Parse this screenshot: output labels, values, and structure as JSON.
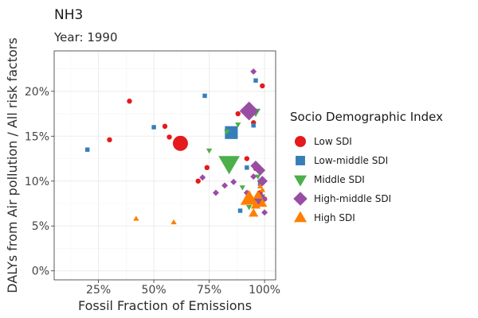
{
  "chart_data": {
    "type": "scatter",
    "title": "NH3",
    "subtitle": "Year: 1990",
    "xlabel": "Fossil Fraction of Emissions",
    "ylabel": "DALYs from Air pollution / All risk factors",
    "xlim": [
      0.05,
      1.05
    ],
    "ylim": [
      -0.01,
      0.245
    ],
    "x_ticks": [
      0.25,
      0.5,
      0.75,
      1.0
    ],
    "x_tick_labels": [
      "25%",
      "50%",
      "75%",
      "100%"
    ],
    "y_ticks": [
      0.0,
      0.05,
      0.1,
      0.15,
      0.2
    ],
    "y_tick_labels": [
      "0%",
      "5%",
      "10%",
      "15%",
      "20%"
    ],
    "grid": true,
    "legend": {
      "title": "Socio Demographic Index",
      "placement": "right"
    },
    "series": [
      {
        "name": "Low SDI",
        "shape": "circle",
        "color": "#E41A1C",
        "points": [
          {
            "x": 0.3,
            "y": 0.146,
            "size": 1
          },
          {
            "x": 0.39,
            "y": 0.189,
            "size": 1
          },
          {
            "x": 0.55,
            "y": 0.161,
            "size": 1
          },
          {
            "x": 0.57,
            "y": 0.149,
            "size": 1
          },
          {
            "x": 0.62,
            "y": 0.142,
            "size": 4
          },
          {
            "x": 0.7,
            "y": 0.1,
            "size": 1
          },
          {
            "x": 0.74,
            "y": 0.115,
            "size": 1
          },
          {
            "x": 0.88,
            "y": 0.175,
            "size": 1
          },
          {
            "x": 0.92,
            "y": 0.177,
            "size": 1
          },
          {
            "x": 0.95,
            "y": 0.165,
            "size": 1
          },
          {
            "x": 0.99,
            "y": 0.206,
            "size": 1
          },
          {
            "x": 0.92,
            "y": 0.125,
            "size": 1
          },
          {
            "x": 0.96,
            "y": 0.114,
            "size": 1
          },
          {
            "x": 0.98,
            "y": 0.087,
            "size": 1
          },
          {
            "x": 1.0,
            "y": 0.08,
            "size": 1
          }
        ]
      },
      {
        "name": "Low-middle SDI",
        "shape": "square",
        "color": "#377EB8",
        "points": [
          {
            "x": 0.2,
            "y": 0.135,
            "size": 1
          },
          {
            "x": 0.5,
            "y": 0.16,
            "size": 1
          },
          {
            "x": 0.73,
            "y": 0.195,
            "size": 1
          },
          {
            "x": 0.85,
            "y": 0.154,
            "size": 4
          },
          {
            "x": 0.92,
            "y": 0.115,
            "size": 1
          },
          {
            "x": 0.95,
            "y": 0.162,
            "size": 1
          },
          {
            "x": 0.96,
            "y": 0.212,
            "size": 1
          },
          {
            "x": 0.89,
            "y": 0.067,
            "size": 1
          },
          {
            "x": 0.98,
            "y": 0.097,
            "size": 1
          }
        ]
      },
      {
        "name": "Middle SDI",
        "shape": "triangle-down",
        "color": "#4DAF4A",
        "points": [
          {
            "x": 0.75,
            "y": 0.134,
            "size": 1
          },
          {
            "x": 0.83,
            "y": 0.155,
            "size": 1
          },
          {
            "x": 0.84,
            "y": 0.12,
            "size": 5
          },
          {
            "x": 0.88,
            "y": 0.163,
            "size": 1
          },
          {
            "x": 0.9,
            "y": 0.093,
            "size": 1
          },
          {
            "x": 0.96,
            "y": 0.177,
            "size": 2
          },
          {
            "x": 0.97,
            "y": 0.105,
            "size": 1
          },
          {
            "x": 0.99,
            "y": 0.083,
            "size": 1
          },
          {
            "x": 0.93,
            "y": 0.071,
            "size": 1
          }
        ]
      },
      {
        "name": "High-middle SDI",
        "shape": "diamond",
        "color": "#984EA3",
        "points": [
          {
            "x": 0.72,
            "y": 0.104,
            "size": 1
          },
          {
            "x": 0.78,
            "y": 0.087,
            "size": 1
          },
          {
            "x": 0.82,
            "y": 0.095,
            "size": 1
          },
          {
            "x": 0.86,
            "y": 0.099,
            "size": 1
          },
          {
            "x": 0.92,
            "y": 0.087,
            "size": 1
          },
          {
            "x": 0.93,
            "y": 0.178,
            "size": 4
          },
          {
            "x": 0.95,
            "y": 0.222,
            "size": 1
          },
          {
            "x": 0.95,
            "y": 0.105,
            "size": 1
          },
          {
            "x": 0.96,
            "y": 0.117,
            "size": 2
          },
          {
            "x": 0.98,
            "y": 0.112,
            "size": 2
          },
          {
            "x": 0.99,
            "y": 0.1,
            "size": 2
          },
          {
            "x": 0.98,
            "y": 0.08,
            "size": 3
          },
          {
            "x": 1.0,
            "y": 0.065,
            "size": 1
          }
        ]
      },
      {
        "name": "High SDI",
        "shape": "triangle-up",
        "color": "#FF7F00",
        "points": [
          {
            "x": 0.42,
            "y": 0.058,
            "size": 1
          },
          {
            "x": 0.59,
            "y": 0.054,
            "size": 1
          },
          {
            "x": 0.93,
            "y": 0.08,
            "size": 4
          },
          {
            "x": 0.95,
            "y": 0.064,
            "size": 2
          },
          {
            "x": 0.96,
            "y": 0.073,
            "size": 2
          },
          {
            "x": 0.97,
            "y": 0.084,
            "size": 2
          },
          {
            "x": 0.98,
            "y": 0.094,
            "size": 1
          },
          {
            "x": 0.99,
            "y": 0.075,
            "size": 2
          },
          {
            "x": 0.99,
            "y": 0.09,
            "size": 1
          }
        ]
      }
    ]
  }
}
